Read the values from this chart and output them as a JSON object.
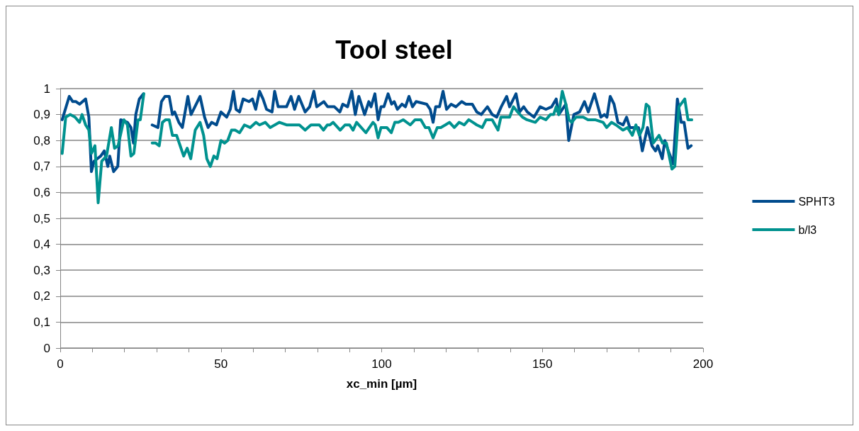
{
  "chart_data": {
    "type": "line",
    "title": "Tool steel",
    "xlabel": "xc_min [µm]",
    "xlim": [
      0,
      200
    ],
    "xticks": [
      0,
      {
        "value": 10,
        "label": null
      },
      {
        "value": 20,
        "label": null
      },
      {
        "value": 30,
        "label": null
      },
      {
        "value": 40,
        "label": null
      },
      50,
      {
        "value": 60,
        "label": null
      },
      {
        "value": 70,
        "label": null
      },
      {
        "value": 80,
        "label": null
      },
      {
        "value": 90,
        "label": null
      },
      100,
      {
        "value": 110,
        "label": null
      },
      {
        "value": 120,
        "label": null
      },
      {
        "value": 130,
        "label": null
      },
      {
        "value": 140,
        "label": null
      },
      150,
      {
        "value": 160,
        "label": null
      },
      {
        "value": 170,
        "label": null
      },
      {
        "value": 180,
        "label": null
      },
      {
        "value": 190,
        "label": null
      },
      200
    ],
    "ylim": [
      0,
      1
    ],
    "yticks": [
      0,
      {
        "value": 0.1,
        "label": "0,1"
      },
      {
        "value": 0.2,
        "label": "0,2"
      },
      {
        "value": 0.3,
        "label": "0,3"
      },
      {
        "value": 0.4,
        "label": "0,4"
      },
      {
        "value": 0.5,
        "label": "0,5"
      },
      {
        "value": 0.6,
        "label": "0,6"
      },
      {
        "value": 0.7,
        "label": "0,7"
      },
      {
        "value": 0.8,
        "label": "0,8"
      },
      {
        "value": 0.9,
        "label": "0,9"
      },
      1
    ],
    "grid": "y",
    "legend": "right",
    "marker": "none",
    "line_style": "solid",
    "series": [
      {
        "name": "SPHT3",
        "color": "#004b8d",
        "x": [
          0.6,
          2.8,
          3.9,
          4.9,
          6,
          7.9,
          8.9,
          9.7,
          10.5,
          12.6,
          13.7,
          14.8,
          15.4,
          16.6,
          17.9,
          18.8,
          20.9,
          22,
          22.8,
          23.5,
          24.6,
          25.9,
          27.3,
          28.6,
          30.4,
          31.5,
          32.6,
          33.9,
          34.9,
          35.6,
          36.9,
          38,
          39.7,
          40.7,
          43.5,
          44.9,
          46,
          47.1,
          48.6,
          50,
          51.8,
          52.9,
          53.9,
          54.7,
          55.8,
          56.9,
          58.7,
          59.8,
          60.8,
          62,
          63.1,
          64.2,
          65.9,
          66.7,
          67.8,
          70.4,
          71.8,
          72.9,
          74.2,
          76.2,
          77.6,
          78.9,
          79.8,
          82,
          83.2,
          85.3,
          87,
          87.9,
          89.4,
          90.7,
          91.8,
          92.9,
          94.7,
          96,
          96.7,
          97.9,
          98.9,
          99.8,
          100.7,
          102,
          103.1,
          103.9,
          104.9,
          106.3,
          107.4,
          108.5,
          109.6,
          110.7,
          114,
          115.1,
          116,
          116.8,
          118,
          119.1,
          120.2,
          121.6,
          123.1,
          124.9,
          126.2,
          128.2,
          129.6,
          131,
          132.9,
          134.4,
          135.8,
          137.2,
          138.9,
          139.8,
          141.8,
          142.9,
          144.2,
          145.3,
          147.4,
          149.3,
          151.1,
          152.9,
          154.3,
          155.1,
          157.3,
          158.2,
          159.8,
          161.6,
          163.1,
          164.3,
          166.2,
          168.2,
          169.3,
          170.1,
          171.1,
          172.3,
          173.5,
          175.1,
          176.2,
          177.2,
          179.9,
          181.1,
          182.7,
          184.1,
          185.2,
          185.9,
          187.3,
          188.1,
          189.2,
          190.7,
          192,
          193.2,
          194.1,
          195.3,
          196.3
        ],
        "values": [
          0.88,
          0.97,
          0.95,
          0.95,
          0.94,
          0.96,
          0.89,
          0.68,
          0.72,
          0.74,
          0.76,
          0.7,
          0.74,
          0.68,
          0.7,
          0.88,
          0.87,
          0.85,
          0.79,
          0.9,
          0.96,
          0.98,
          null,
          0.86,
          0.85,
          0.95,
          0.97,
          0.97,
          0.9,
          0.91,
          0.87,
          0.85,
          0.97,
          0.9,
          0.97,
          0.89,
          0.85,
          0.87,
          0.86,
          0.91,
          0.89,
          0.92,
          0.99,
          0.92,
          0.91,
          0.96,
          0.95,
          0.96,
          0.92,
          0.99,
          0.96,
          0.92,
          0.91,
          0.99,
          0.93,
          0.93,
          0.97,
          0.92,
          0.97,
          0.91,
          0.93,
          0.99,
          0.93,
          0.95,
          0.93,
          0.93,
          0.91,
          0.94,
          0.93,
          0.99,
          0.9,
          0.97,
          0.9,
          0.95,
          0.93,
          0.98,
          0.88,
          0.93,
          0.93,
          0.98,
          0.94,
          0.95,
          0.92,
          0.94,
          0.93,
          0.97,
          0.93,
          0.95,
          0.94,
          0.92,
          0.87,
          0.93,
          0.93,
          0.99,
          0.92,
          0.94,
          0.93,
          0.95,
          0.94,
          0.94,
          0.91,
          0.9,
          0.93,
          0.9,
          0.89,
          0.93,
          0.97,
          0.93,
          0.98,
          0.91,
          0.93,
          0.91,
          0.89,
          0.93,
          0.92,
          0.93,
          0.96,
          0.9,
          0.94,
          0.8,
          0.9,
          0.91,
          0.95,
          0.91,
          0.98,
          0.89,
          0.9,
          0.89,
          0.97,
          0.94,
          0.87,
          0.86,
          0.89,
          0.85,
          0.85,
          0.76,
          0.85,
          0.78,
          0.76,
          0.78,
          0.73,
          0.8,
          0.76,
          0.71,
          0.96,
          0.87,
          0.87,
          0.77,
          0.78
        ]
      },
      {
        "name": "b/l3",
        "color": "#00928f",
        "x": [
          0.6,
          1.7,
          3.1,
          4.6,
          6,
          6.8,
          7.9,
          8.9,
          9.7,
          10.8,
          11.8,
          12.9,
          14.4,
          15.9,
          16.9,
          18,
          19.8,
          20.9,
          22,
          22.9,
          24.2,
          24.9,
          26,
          27.3,
          28.6,
          29.7,
          30.8,
          31.8,
          32.8,
          33.9,
          34.9,
          36.2,
          37.3,
          38.4,
          39.5,
          40.6,
          42,
          43.5,
          44.6,
          45.6,
          46.7,
          47.8,
          48.8,
          50,
          51.1,
          52.1,
          53.3,
          54.4,
          55.8,
          57.3,
          59.1,
          60.9,
          62,
          63.8,
          65.3,
          68.2,
          70.4,
          72.1,
          73.3,
          74.4,
          76.2,
          78,
          80.6,
          81.9,
          83.1,
          83.9,
          84.9,
          87.1,
          88.6,
          90,
          91.1,
          92.2,
          95.1,
          97.3,
          98,
          98.9,
          99.8,
          101.6,
          103,
          104.1,
          105.2,
          106.7,
          108.9,
          110.4,
          112.2,
          113.6,
          114.7,
          116,
          117.3,
          118.4,
          119.8,
          121.1,
          122.6,
          124.1,
          125.7,
          127.1,
          128.4,
          129.6,
          131.3,
          132.5,
          134.4,
          135.3,
          136.2,
          137.1,
          138.8,
          139.8,
          141,
          142.3,
          143.8,
          145.2,
          147.8,
          149.3,
          151.1,
          152.5,
          153.5,
          154.3,
          155.1,
          156.2,
          157.3,
          158.3,
          159.1,
          160.5,
          162,
          162.7,
          164.2,
          166.4,
          168.9,
          170,
          171.5,
          172.9,
          175.1,
          176.5,
          178,
          179.1,
          180.2,
          181.3,
          182.3,
          183.2,
          184.5,
          186.3,
          187.4,
          188.6,
          190.3,
          191.2,
          192.5,
          194.3,
          195.3,
          196.5
        ],
        "values": [
          0.75,
          0.89,
          0.9,
          0.89,
          0.87,
          0.9,
          0.86,
          0.84,
          0.75,
          0.78,
          0.56,
          0.72,
          0.74,
          0.85,
          0.77,
          0.78,
          0.88,
          0.86,
          0.74,
          0.75,
          0.88,
          0.88,
          0.98,
          null,
          0.79,
          0.79,
          0.78,
          0.87,
          0.88,
          0.88,
          0.82,
          0.82,
          0.78,
          0.74,
          0.77,
          0.73,
          0.84,
          0.87,
          0.82,
          0.73,
          0.7,
          0.74,
          0.73,
          0.8,
          0.79,
          0.8,
          0.84,
          0.84,
          0.83,
          0.86,
          0.85,
          0.87,
          0.86,
          0.87,
          0.85,
          0.87,
          0.86,
          0.86,
          0.86,
          0.86,
          0.84,
          0.86,
          0.86,
          0.84,
          0.86,
          0.86,
          0.87,
          0.84,
          0.86,
          0.86,
          0.84,
          0.87,
          0.83,
          0.87,
          0.86,
          0.81,
          0.85,
          0.85,
          0.83,
          0.87,
          0.87,
          0.88,
          0.86,
          0.88,
          0.88,
          0.85,
          0.85,
          0.81,
          0.85,
          0.85,
          0.86,
          0.87,
          0.85,
          0.87,
          0.86,
          0.88,
          0.87,
          0.86,
          0.85,
          0.88,
          0.88,
          0.86,
          0.84,
          0.89,
          0.89,
          0.89,
          0.93,
          0.91,
          0.89,
          0.88,
          0.87,
          0.89,
          0.88,
          0.9,
          0.9,
          0.93,
          0.9,
          0.99,
          0.94,
          0.88,
          0.87,
          0.89,
          0.89,
          0.89,
          0.88,
          0.88,
          0.87,
          0.85,
          0.87,
          0.86,
          0.84,
          0.85,
          0.82,
          0.86,
          0.82,
          0.85,
          0.94,
          0.93,
          0.79,
          0.82,
          0.79,
          0.79,
          0.69,
          0.7,
          0.93,
          0.96,
          0.88,
          0.88
        ]
      }
    ]
  }
}
